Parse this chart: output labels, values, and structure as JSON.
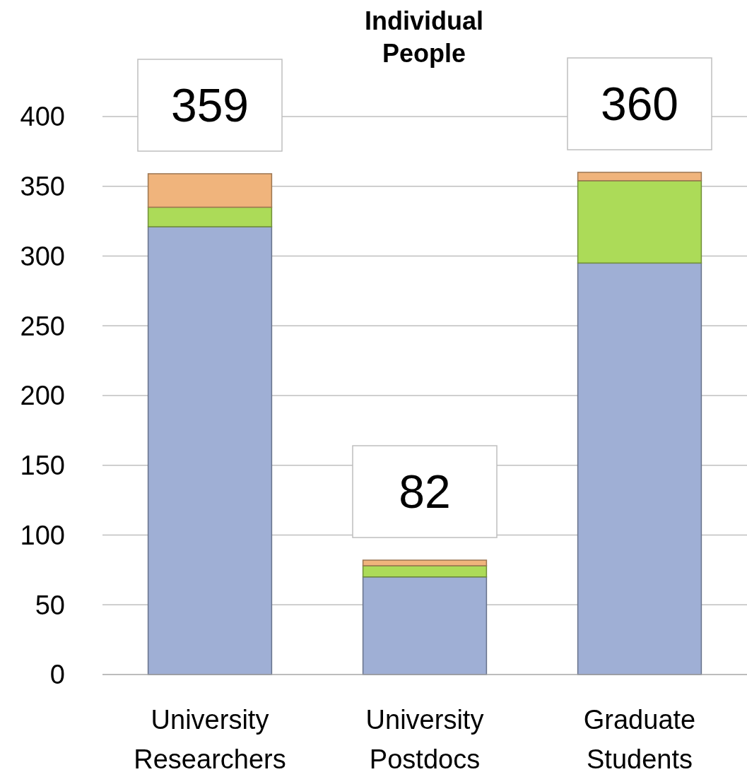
{
  "chart_data": {
    "type": "bar",
    "title": "Individual People",
    "stacked": true,
    "categories": [
      "University Researchers",
      "University Postdocs",
      "Graduate Students"
    ],
    "series": [
      {
        "color": "#9fafd5",
        "values": [
          321,
          70,
          295
        ]
      },
      {
        "color": "#acdb58",
        "values": [
          14,
          8,
          59
        ]
      },
      {
        "color": "#f0b47c",
        "values": [
          24,
          4,
          6
        ]
      }
    ],
    "totals": [
      "359",
      "82",
      "360"
    ],
    "ylim": [
      0,
      400
    ],
    "yticks": [
      0,
      50,
      100,
      150,
      200,
      250,
      300,
      350,
      400
    ],
    "grid": "y"
  }
}
